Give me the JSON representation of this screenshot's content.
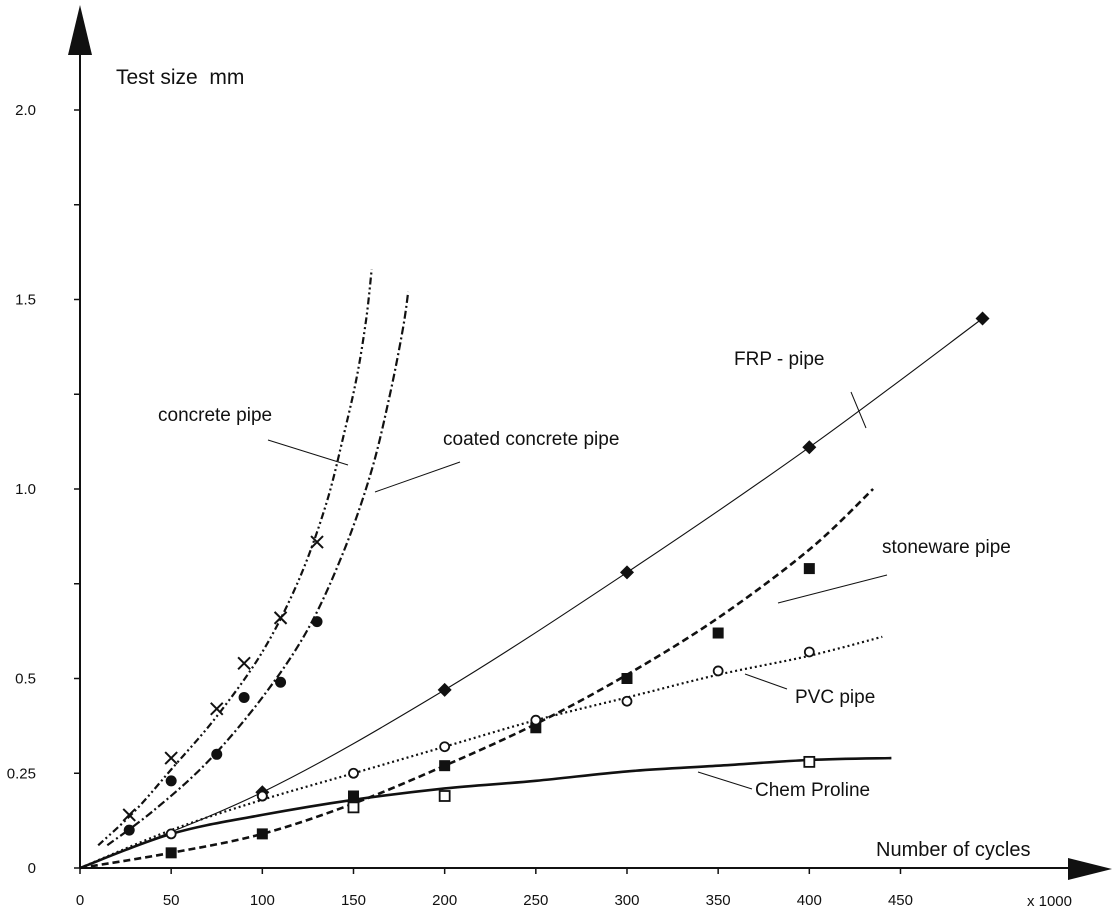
{
  "chart_data": {
    "type": "line",
    "title": "",
    "ylabel": "Test size  mm",
    "xlabel": "Number of cycles",
    "x_unit": "x 1000",
    "xlim": [
      0,
      500
    ],
    "ylim": [
      0,
      2.0
    ],
    "x_ticks": [
      "0",
      "50",
      "100",
      "150",
      "200",
      "250",
      "300",
      "350",
      "400",
      "450"
    ],
    "y_ticks": [
      {
        "value": 0,
        "label": "0"
      },
      {
        "value": 0.25,
        "label": "0.25"
      },
      {
        "value": 0.5,
        "label": "0.5"
      },
      {
        "value": 1.0,
        "label": "1.0"
      },
      {
        "value": 1.5,
        "label": "1.5"
      },
      {
        "value": 2.0,
        "label": "2.0"
      }
    ],
    "y_minor_ticks": [
      0.75,
      1.25,
      1.75
    ],
    "grid": false,
    "series": [
      {
        "name": "concrete pipe",
        "marker": "x",
        "line_style": "dash-dot-dot",
        "points": [
          [
            27,
            0.14
          ],
          [
            50,
            0.29
          ],
          [
            75,
            0.42
          ],
          [
            90,
            0.54
          ],
          [
            110,
            0.66
          ],
          [
            130,
            0.86
          ]
        ],
        "curve": [
          [
            10,
            0.06
          ],
          [
            30,
            0.15
          ],
          [
            50,
            0.26
          ],
          [
            75,
            0.4
          ],
          [
            100,
            0.57
          ],
          [
            120,
            0.76
          ],
          [
            135,
            0.96
          ],
          [
            145,
            1.15
          ],
          [
            152,
            1.3
          ],
          [
            157,
            1.45
          ],
          [
            160,
            1.58
          ]
        ]
      },
      {
        "name": "coated concrete pipe",
        "marker": "filled-circle",
        "line_style": "dash-dot",
        "points": [
          [
            27,
            0.1
          ],
          [
            50,
            0.23
          ],
          [
            75,
            0.3
          ],
          [
            90,
            0.45
          ],
          [
            100,
            0.19
          ],
          [
            110,
            0.49
          ],
          [
            130,
            0.65
          ]
        ],
        "curve": [
          [
            15,
            0.06
          ],
          [
            40,
            0.15
          ],
          [
            70,
            0.28
          ],
          [
            100,
            0.45
          ],
          [
            125,
            0.63
          ],
          [
            145,
            0.84
          ],
          [
            160,
            1.05
          ],
          [
            170,
            1.25
          ],
          [
            177,
            1.42
          ],
          [
            180,
            1.52
          ]
        ]
      },
      {
        "name": "FRP - pipe",
        "marker": "filled-diamond",
        "line_style": "solid-thin",
        "points": [
          [
            100,
            0.2
          ],
          [
            200,
            0.47
          ],
          [
            300,
            0.78
          ],
          [
            400,
            1.11
          ],
          [
            495,
            1.45
          ]
        ],
        "curve": [
          [
            0,
            0.0
          ],
          [
            100,
            0.2
          ],
          [
            200,
            0.47
          ],
          [
            300,
            0.78
          ],
          [
            400,
            1.11
          ],
          [
            495,
            1.45
          ]
        ]
      },
      {
        "name": "stoneware pipe",
        "marker": "filled-square",
        "line_style": "dashed",
        "points": [
          [
            50,
            0.04
          ],
          [
            100,
            0.09
          ],
          [
            150,
            0.19
          ],
          [
            200,
            0.27
          ],
          [
            250,
            0.37
          ],
          [
            300,
            0.5
          ],
          [
            350,
            0.62
          ],
          [
            400,
            0.79
          ]
        ],
        "curve": [
          [
            0,
            0.0
          ],
          [
            50,
            0.04
          ],
          [
            100,
            0.09
          ],
          [
            150,
            0.17
          ],
          [
            200,
            0.27
          ],
          [
            250,
            0.38
          ],
          [
            300,
            0.51
          ],
          [
            350,
            0.66
          ],
          [
            400,
            0.84
          ],
          [
            435,
            1.0
          ]
        ]
      },
      {
        "name": "PVC pipe",
        "marker": "open-circle",
        "line_style": "dotted",
        "points": [
          [
            50,
            0.09
          ],
          [
            100,
            0.19
          ],
          [
            150,
            0.25
          ],
          [
            200,
            0.32
          ],
          [
            250,
            0.39
          ],
          [
            300,
            0.44
          ],
          [
            350,
            0.52
          ],
          [
            400,
            0.57
          ]
        ],
        "curve": [
          [
            0,
            0.0
          ],
          [
            50,
            0.1
          ],
          [
            100,
            0.18
          ],
          [
            150,
            0.25
          ],
          [
            200,
            0.32
          ],
          [
            250,
            0.39
          ],
          [
            300,
            0.45
          ],
          [
            350,
            0.51
          ],
          [
            400,
            0.56
          ],
          [
            440,
            0.61
          ]
        ]
      },
      {
        "name": "Chem Proline",
        "marker": "open-square",
        "line_style": "solid-thick",
        "points": [
          [
            150,
            0.16
          ],
          [
            200,
            0.19
          ],
          [
            400,
            0.28
          ]
        ],
        "curve": [
          [
            0,
            0.0
          ],
          [
            50,
            0.09
          ],
          [
            100,
            0.14
          ],
          [
            150,
            0.18
          ],
          [
            200,
            0.21
          ],
          [
            250,
            0.23
          ],
          [
            300,
            0.255
          ],
          [
            350,
            0.27
          ],
          [
            400,
            0.285
          ],
          [
            445,
            0.29
          ]
        ]
      }
    ]
  }
}
